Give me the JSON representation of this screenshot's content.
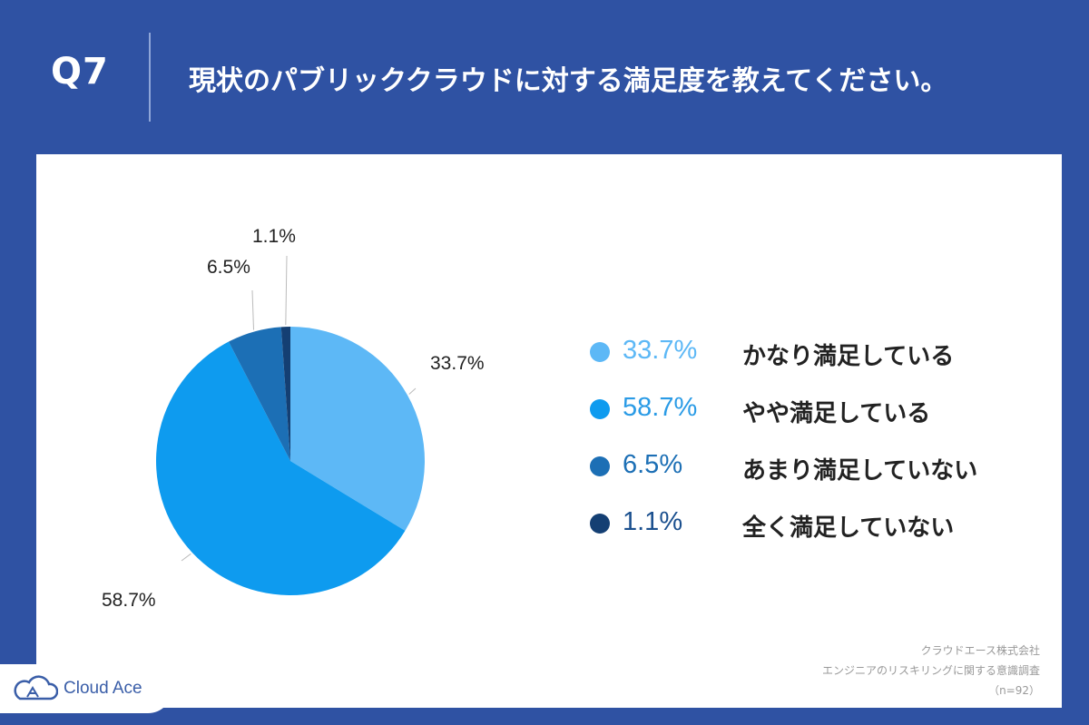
{
  "header": {
    "question_number": "Q7",
    "question_text": "現状のパブリッククラウドに対する満足度を教えてください。"
  },
  "chart_data": {
    "type": "pie",
    "title": "",
    "categories": [
      "かなり満足している",
      "やや満足している",
      "あまり満足していない",
      "全く満足していない"
    ],
    "values": [
      33.7,
      58.7,
      6.5,
      1.1
    ],
    "value_labels": [
      "33.7%",
      "58.7%",
      "6.5%",
      "1.1%"
    ],
    "colors": [
      "#5db8f6",
      "#0e9bef",
      "#1c6fb5",
      "#143f73"
    ],
    "legend_pct_colors": [
      "#5db8f6",
      "#2a9be6",
      "#1c6fb5",
      "#1a4f8e"
    ],
    "start_angle_deg": 0,
    "direction": "clockwise",
    "legend_position": "right"
  },
  "source": {
    "company": "クラウドエース株式会社",
    "survey": "エンジニアのリスキリングに関する意識調査",
    "sample": "（n=92）"
  },
  "logo": {
    "text": "Cloud Ace",
    "icon": "cloud-icon"
  }
}
